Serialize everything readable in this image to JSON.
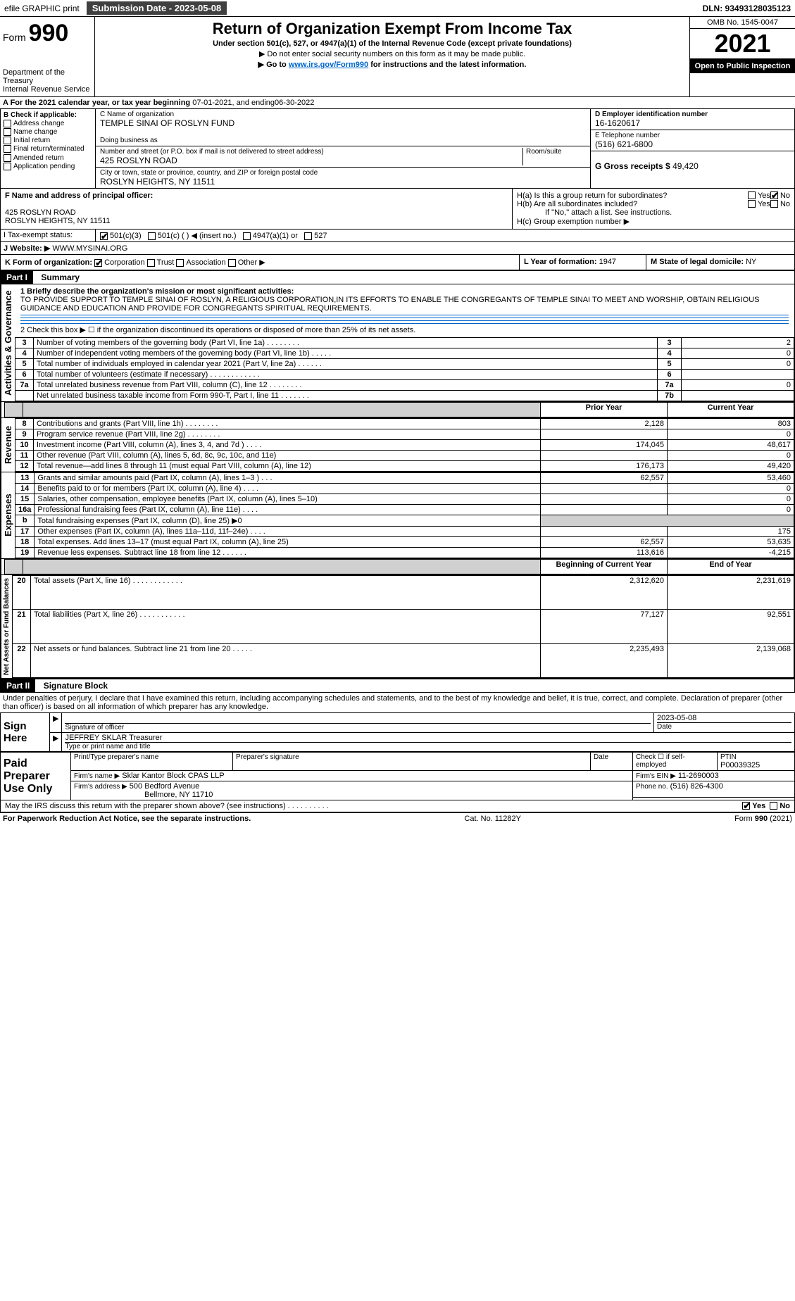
{
  "topbar": {
    "efile": "efile GRAPHIC print",
    "submission_label": "Submission Date - 2023-05-08",
    "dln": "DLN: 93493128035123"
  },
  "header": {
    "form_label": "Form",
    "form_number": "990",
    "dept": "Department of the Treasury",
    "irs": "Internal Revenue Service",
    "title": "Return of Organization Exempt From Income Tax",
    "sub1": "Under section 501(c), 527, or 4947(a)(1) of the Internal Revenue Code (except private foundations)",
    "sub2": "▶ Do not enter social security numbers on this form as it may be made public.",
    "sub3_prefix": "▶ Go to ",
    "sub3_link": "www.irs.gov/Form990",
    "sub3_suffix": " for instructions and the latest information.",
    "omb": "OMB No. 1545-0047",
    "year": "2021",
    "inspect": "Open to Public Inspection"
  },
  "sectionA": {
    "text_prefix": "A For the 2021 calendar year, or tax year beginning ",
    "begin": "07-01-2021",
    "text_mid": " , and ending ",
    "end": "06-30-2022"
  },
  "sectionB": {
    "label": "B Check if applicable:",
    "items": [
      "Address change",
      "Name change",
      "Initial return",
      "Final return/terminated",
      "Amended return",
      "Application pending"
    ]
  },
  "sectionC": {
    "label": "C Name of organization",
    "name": "TEMPLE SINAI OF ROSLYN FUND",
    "dba": "Doing business as",
    "street_label": "Number and street (or P.O. box if mail is not delivered to street address)",
    "room_label": "Room/suite",
    "street": "425 ROSLYN ROAD",
    "city_label": "City or town, state or province, country, and ZIP or foreign postal code",
    "city": "ROSLYN HEIGHTS, NY  11511"
  },
  "sectionD": {
    "label": "D Employer identification number",
    "value": "16-1620617"
  },
  "sectionE": {
    "label": "E Telephone number",
    "value": "(516) 621-6800"
  },
  "sectionG": {
    "label": "G Gross receipts $",
    "value": "49,420"
  },
  "sectionF": {
    "label": "F Name and address of principal officer:",
    "line1": "425 ROSLYN ROAD",
    "line2": "ROSLYN HEIGHTS, NY  11511"
  },
  "sectionH": {
    "a": "H(a)  Is this a group return for subordinates?",
    "b": "H(b)  Are all subordinates included?",
    "b_note": "If \"No,\" attach a list. See instructions.",
    "c": "H(c)  Group exemption number ▶",
    "yes": "Yes",
    "no": "No"
  },
  "sectionI": {
    "label": "I Tax-exempt status:",
    "o1": "501(c)(3)",
    "o2": "501(c) (   ) ◀ (insert no.)",
    "o3": "4947(a)(1) or",
    "o4": "527"
  },
  "sectionJ": {
    "label": "J  Website: ▶",
    "value": "WWW.MYSINAI.ORG"
  },
  "sectionK": {
    "label": "K Form of organization:",
    "o1": "Corporation",
    "o2": "Trust",
    "o3": "Association",
    "o4": "Other ▶"
  },
  "sectionL": {
    "label": "L Year of formation:",
    "value": "1947"
  },
  "sectionM": {
    "label": "M State of legal domicile:",
    "value": "NY"
  },
  "part1": {
    "bar": "Part I",
    "title": "Summary"
  },
  "summary": {
    "l1_label": "1  Briefly describe the organization's mission or most significant activities:",
    "l1_text": "TO PROVIDE SUPPORT TO TEMPLE SINAI OF ROSLYN, A RELIGIOUS CORPORATION,IN ITS EFFORTS TO ENABLE THE CONGREGANTS OF TEMPLE SINAI TO MEET AND WORSHIP, OBTAIN RELIGIOUS GUIDANCE AND EDUCATION AND PROVIDE FOR CONGREGANTS SPIRITUAL REQUIREMENTS.",
    "l2": "2  Check this box ▶ ☐  if the organization discontinued its operations or disposed of more than 25% of its net assets.",
    "l3": "Number of voting members of the governing body (Part VI, line 1a)   .     .     .     .     .     .     .     .",
    "l4": "Number of independent voting members of the governing body (Part VI, line 1b)   .     .     .     .     .",
    "l5": "Total number of individuals employed in calendar year 2021 (Part V, line 2a)   .     .     .     .     .     .",
    "l6": "Total number of volunteers (estimate if necessary)    .     .     .     .     .     .     .     .     .     .     .     .",
    "l7a": "Total unrelated business revenue from Part VIII, column (C), line 12   .     .     .     .     .     .     .     .",
    "l7b": "Net unrelated business taxable income from Form 990-T, Part I, line 11   .     .     .     .     .     .     .",
    "v3": "2",
    "v4": "0",
    "v5": "0",
    "v6": "",
    "v7a": "0",
    "v7b": "",
    "col_prior": "Prior Year",
    "col_current": "Current Year",
    "rows": [
      {
        "n": "8",
        "t": "Contributions and grants (Part VIII, line 1h)   .     .     .     .     .     .     .     .",
        "p": "2,128",
        "c": "803"
      },
      {
        "n": "9",
        "t": "Program service revenue (Part VIII, line 2g)   .     .     .     .     .     .     .     .",
        "p": "",
        "c": "0"
      },
      {
        "n": "10",
        "t": "Investment income (Part VIII, column (A), lines 3, 4, and 7d )   .     .     .     .",
        "p": "174,045",
        "c": "48,617"
      },
      {
        "n": "11",
        "t": "Other revenue (Part VIII, column (A), lines 5, 6d, 8c, 9c, 10c, and 11e)",
        "p": "",
        "c": "0"
      },
      {
        "n": "12",
        "t": "Total revenue—add lines 8 through 11 (must equal Part VIII, column (A), line 12)",
        "p": "176,173",
        "c": "49,420"
      },
      {
        "n": "13",
        "t": "Grants and similar amounts paid (Part IX, column (A), lines 1–3 )   .     .     .",
        "p": "62,557",
        "c": "53,460"
      },
      {
        "n": "14",
        "t": "Benefits paid to or for members (Part IX, column (A), line 4)   .     .     .     .",
        "p": "",
        "c": "0"
      },
      {
        "n": "15",
        "t": "Salaries, other compensation, employee benefits (Part IX, column (A), lines 5–10)",
        "p": "",
        "c": "0"
      },
      {
        "n": "16a",
        "t": "Professional fundraising fees (Part IX, column (A), line 11e)   .     .     .     .",
        "p": "",
        "c": "0"
      },
      {
        "n": "b",
        "t": "Total fundraising expenses (Part IX, column (D), line 25) ▶0",
        "p": null,
        "c": null
      },
      {
        "n": "17",
        "t": "Other expenses (Part IX, column (A), lines 11a–11d, 11f–24e)   .     .     .     .",
        "p": "",
        "c": "175"
      },
      {
        "n": "18",
        "t": "Total expenses. Add lines 13–17 (must equal Part IX, column (A), line 25)",
        "p": "62,557",
        "c": "53,635"
      },
      {
        "n": "19",
        "t": "Revenue less expenses. Subtract line 18 from line 12   .     .     .     .     .     .",
        "p": "113,616",
        "c": "-4,215"
      }
    ],
    "col_begin": "Beginning of Current Year",
    "col_end": "End of Year",
    "rows2": [
      {
        "n": "20",
        "t": "Total assets (Part X, line 16)   .     .     .     .     .     .     .     .     .     .     .     .",
        "p": "2,312,620",
        "c": "2,231,619"
      },
      {
        "n": "21",
        "t": "Total liabilities (Part X, line 26)   .     .     .     .     .     .     .     .     .     .     .",
        "p": "77,127",
        "c": "92,551"
      },
      {
        "n": "22",
        "t": "Net assets or fund balances. Subtract line 21 from line 20   .     .     .     .     .",
        "p": "2,235,493",
        "c": "2,139,068"
      }
    ]
  },
  "sidelabels": {
    "ag": "Activities & Governance",
    "rev": "Revenue",
    "exp": "Expenses",
    "net": "Net Assets or Fund Balances"
  },
  "part2": {
    "bar": "Part II",
    "title": "Signature Block"
  },
  "sig": {
    "penalties": "Under penalties of perjury, I declare that I have examined this return, including accompanying schedules and statements, and to the best of my knowledge and belief, it is true, correct, and complete. Declaration of preparer (other than officer) is based on all information of which preparer has any knowledge.",
    "signhere": "Sign Here",
    "sig_officer": "Signature of officer",
    "date": "Date",
    "sig_date": "2023-05-08",
    "name_title": "JEFFREY SKLAR  Treasurer",
    "type_name": "Type or print name and title",
    "paid": "Paid Preparer Use Only",
    "pp_name": "Print/Type preparer's name",
    "pp_sig": "Preparer's signature",
    "pp_date": "Date",
    "pp_check": "Check ☐ if self-employed",
    "ptin_label": "PTIN",
    "ptin": "P00039325",
    "firm_name_label": "Firm's name    ▶",
    "firm_name": "Sklar Kantor Block CPAS LLP",
    "firm_ein_label": "Firm's EIN ▶",
    "firm_ein": "11-2690003",
    "firm_addr_label": "Firm's address ▶",
    "firm_addr1": "500 Bedford Avenue",
    "firm_addr2": "Bellmore, NY  11710",
    "phone_label": "Phone no.",
    "phone": "(516) 826-4300",
    "discuss": "May the IRS discuss this return with the preparer shown above? (see instructions)   .     .     .     .     .     .     .     .     .     .",
    "yes": "Yes",
    "no": "No"
  },
  "footer": {
    "left": "For Paperwork Reduction Act Notice, see the separate instructions.",
    "mid": "Cat. No. 11282Y",
    "right": "Form 990 (2021)"
  }
}
